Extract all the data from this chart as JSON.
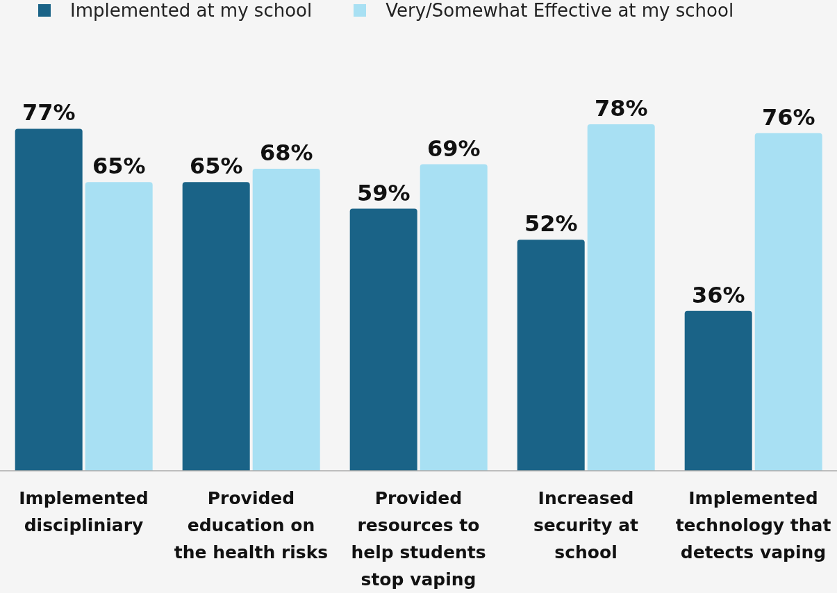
{
  "chart_data": {
    "type": "bar",
    "categories": [
      "Implemented discipliniary",
      "Provided education on the health risks",
      "Provided resources to help students stop vaping",
      "Increased security at school",
      "Implemented technology that detects vaping"
    ],
    "series": [
      {
        "name": "Implemented at my school",
        "color": "#1a6387",
        "values": [
          77,
          65,
          59,
          52,
          36
        ],
        "value_labels": [
          "77%",
          "65%",
          "59%",
          "52%",
          "36%"
        ]
      },
      {
        "name": "Very/Somewhat Effective at my school",
        "color": "#a8e0f3",
        "values": [
          65,
          68,
          69,
          78,
          76
        ],
        "value_labels": [
          "65%",
          "68%",
          "69%",
          "78%",
          "76%"
        ]
      }
    ],
    "legend": "top left",
    "grid": false
  }
}
